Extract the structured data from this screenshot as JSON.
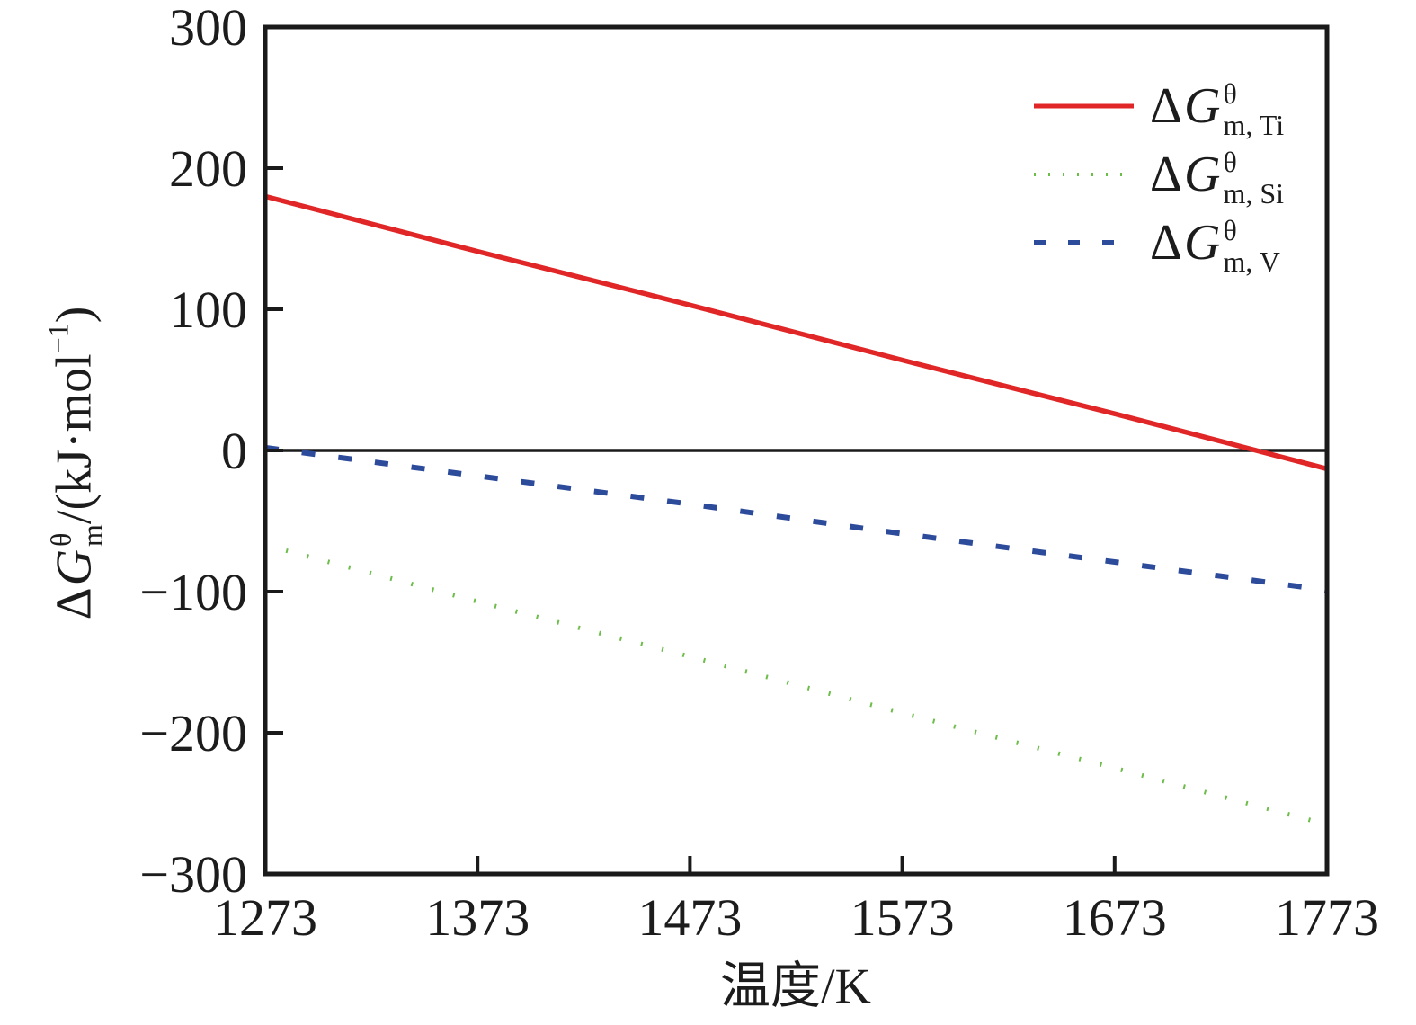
{
  "figure": {
    "background": "#ffffff",
    "axis_color": "#1a1a1a",
    "text_color": "#1c1c1c"
  },
  "x_axis": {
    "label": "温度/K",
    "tick_labels": [
      "1273",
      "1373",
      "1473",
      "1573",
      "1673",
      "1773"
    ]
  },
  "y_axis": {
    "tick_labels": [
      "300",
      "200",
      "100",
      "0",
      "−100",
      "−200",
      "−300"
    ],
    "label_parts": {
      "delta": "Δ",
      "g": "G",
      "sup": "θ",
      "sub": "m",
      "unit_open": "/(kJ·mol",
      "unit_exp": "−1",
      "unit_close": ")"
    }
  },
  "legend": {
    "items": [
      {
        "delta": "Δ",
        "g": "G",
        "sup": "θ",
        "sub": "m, Ti"
      },
      {
        "delta": "Δ",
        "g": "G",
        "sup": "θ",
        "sub": "m, Si"
      },
      {
        "delta": "Δ",
        "g": "G",
        "sup": "θ",
        "sub": "m, V"
      }
    ]
  },
  "chart_data": {
    "type": "line",
    "title": "",
    "xlabel": "温度/K",
    "ylabel": "ΔG_m^θ/(kJ·mol^−1)",
    "x": [
      1273,
      1373,
      1473,
      1573,
      1673,
      1773
    ],
    "xlim": [
      1273,
      1773
    ],
    "ylim": [
      -300,
      300
    ],
    "x_ticks": [
      1273,
      1373,
      1473,
      1573,
      1673,
      1773
    ],
    "y_ticks": [
      300,
      200,
      100,
      0,
      -100,
      -200,
      -300
    ],
    "grid": false,
    "zero_line": true,
    "legend_position": "upper-right-inside",
    "series": [
      {
        "name": "ΔG_m,Ti^θ",
        "element": "Ti",
        "color": "#e02626",
        "line_style": "solid",
        "values": [
          180,
          141,
          103,
          64,
          26,
          -13
        ]
      },
      {
        "name": "ΔG_m,Si^θ",
        "element": "Si",
        "color": "#6dbd4a",
        "line_style": "dotted",
        "values": [
          -67,
          -107,
          -146,
          -186,
          -225,
          -265
        ]
      },
      {
        "name": "ΔG_m,V^θ",
        "element": "V",
        "color": "#2d4b9b",
        "line_style": "dashed",
        "values": [
          2,
          -18,
          -38,
          -59,
          -79,
          -99
        ]
      }
    ]
  }
}
